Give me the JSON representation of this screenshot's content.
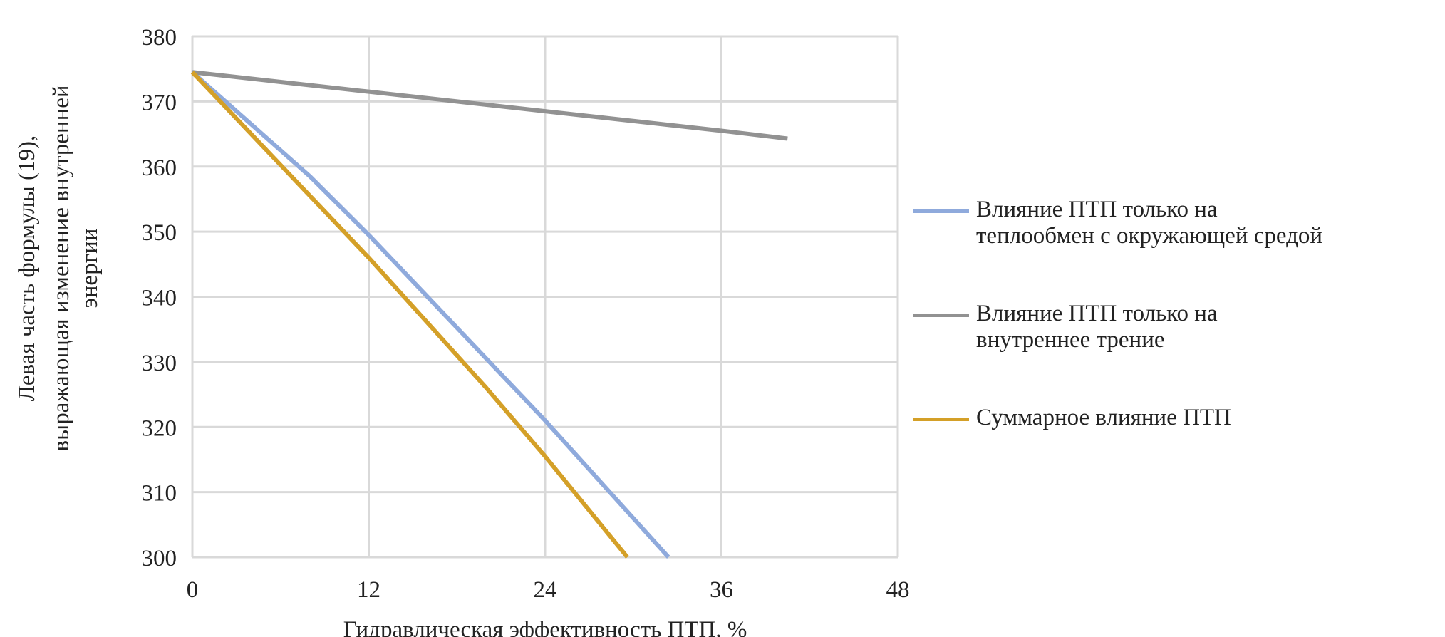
{
  "chart_data": {
    "type": "line",
    "xlabel": "Гидравлическая эффективность ПТП, %",
    "ylabel_lines": [
      "Левая часть формулы (19),",
      "выражающая изменение внутренней",
      "энергии"
    ],
    "xlim": [
      0,
      48
    ],
    "ylim": [
      300,
      380
    ],
    "xticks": [
      "0",
      "12",
      "24",
      "36",
      "48"
    ],
    "yticks": [
      "300",
      "310",
      "320",
      "330",
      "340",
      "350",
      "360",
      "370",
      "380"
    ],
    "grid": true,
    "legend_position": "right",
    "series": [
      {
        "name_lines": [
          "Влияние ПТП только на",
          "теплообмен с окружающей средой"
        ],
        "color": "#8faadc",
        "points": [
          [
            0,
            374.5
          ],
          [
            4,
            366.5
          ],
          [
            8,
            358.5
          ],
          [
            12,
            349.5
          ],
          [
            16,
            340
          ],
          [
            20,
            330.5
          ],
          [
            24,
            321
          ],
          [
            28,
            311
          ],
          [
            32.4,
            300
          ]
        ]
      },
      {
        "name_lines": [
          "Влияние ПТП только на",
          "внутреннее трение"
        ],
        "color": "#929292",
        "points": [
          [
            0,
            374.5
          ],
          [
            12,
            371.5
          ],
          [
            24,
            368.5
          ],
          [
            36,
            365.5
          ],
          [
            40.5,
            364.3
          ]
        ]
      },
      {
        "name_lines": [
          "Суммарное влияние ПТП"
        ],
        "color": "#d4a028",
        "points": [
          [
            0,
            374.5
          ],
          [
            4,
            365
          ],
          [
            8,
            355.5
          ],
          [
            12,
            346
          ],
          [
            16,
            336
          ],
          [
            20,
            326
          ],
          [
            24,
            315.5
          ],
          [
            29.6,
            300
          ]
        ]
      }
    ]
  }
}
